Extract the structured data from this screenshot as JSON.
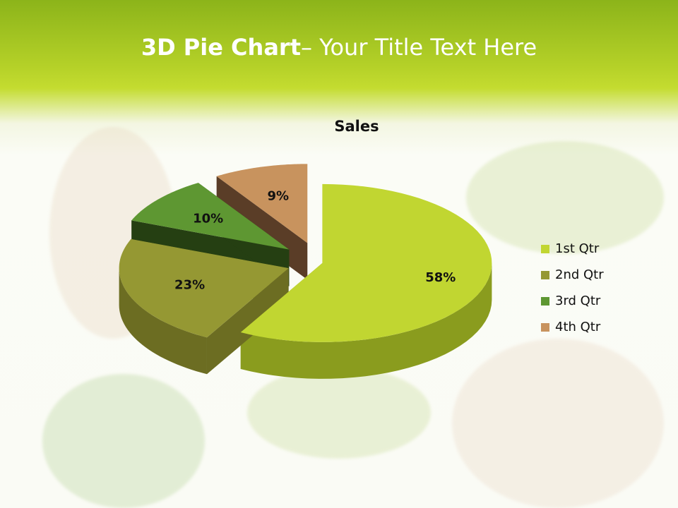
{
  "slide": {
    "title_bold": "3D Pie Chart",
    "title_rest": "– Your Title Text Here"
  },
  "chart_data": {
    "type": "pie",
    "style": "3d-exploded",
    "title": "Sales",
    "categories": [
      "1st Qtr",
      "2nd Qtr",
      "3rd Qtr",
      "4th Qtr"
    ],
    "values": [
      58,
      23,
      10,
      9
    ],
    "data_labels": [
      "58%",
      "23%",
      "10%",
      "9%"
    ],
    "colors": [
      "#c1d631",
      "#959833",
      "#5e9732",
      "#c8935e"
    ],
    "side_colors": [
      "#8a9c1e",
      "#6c6d22",
      "#253f12",
      "#5a3d27"
    ],
    "legend_position": "right"
  }
}
